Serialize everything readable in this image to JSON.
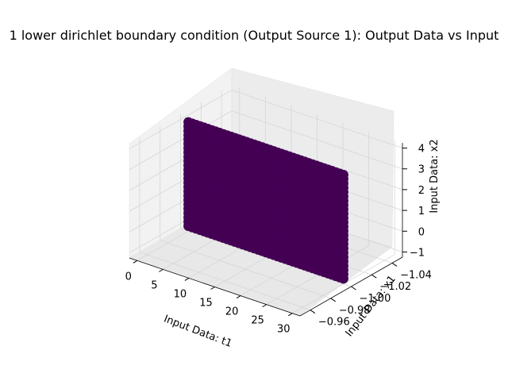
{
  "chart_data": {
    "type": "scatter",
    "projection": "3d",
    "title": "1 lower dirichlet boundary condition (Output Source 1): Output Data vs Input",
    "xlabel": "Input Data: t1",
    "ylabel": "Input Data: x1",
    "zlabel": "Input Data: x2",
    "x_ticks": [
      "0",
      "5",
      "10",
      "15",
      "20",
      "25",
      "30"
    ],
    "y_ticks": [
      "−1.04",
      "−1.02",
      "−1.00",
      "−0.98",
      "−0.96"
    ],
    "z_ticks": [
      "−1",
      "0",
      "1",
      "2",
      "3",
      "4"
    ],
    "xlim": [
      -1.5,
      31.5
    ],
    "ylim": [
      -1.05,
      -0.95
    ],
    "zlim": [
      -1.25,
      4.25
    ],
    "point_color": "#440154",
    "series": [
      {
        "points_description": "dense grid of samples forming a flat plane",
        "x_range": [
          0,
          30
        ],
        "y_value": -1.0,
        "z_range": [
          -1,
          4
        ]
      }
    ],
    "grid": true,
    "legend": false
  }
}
